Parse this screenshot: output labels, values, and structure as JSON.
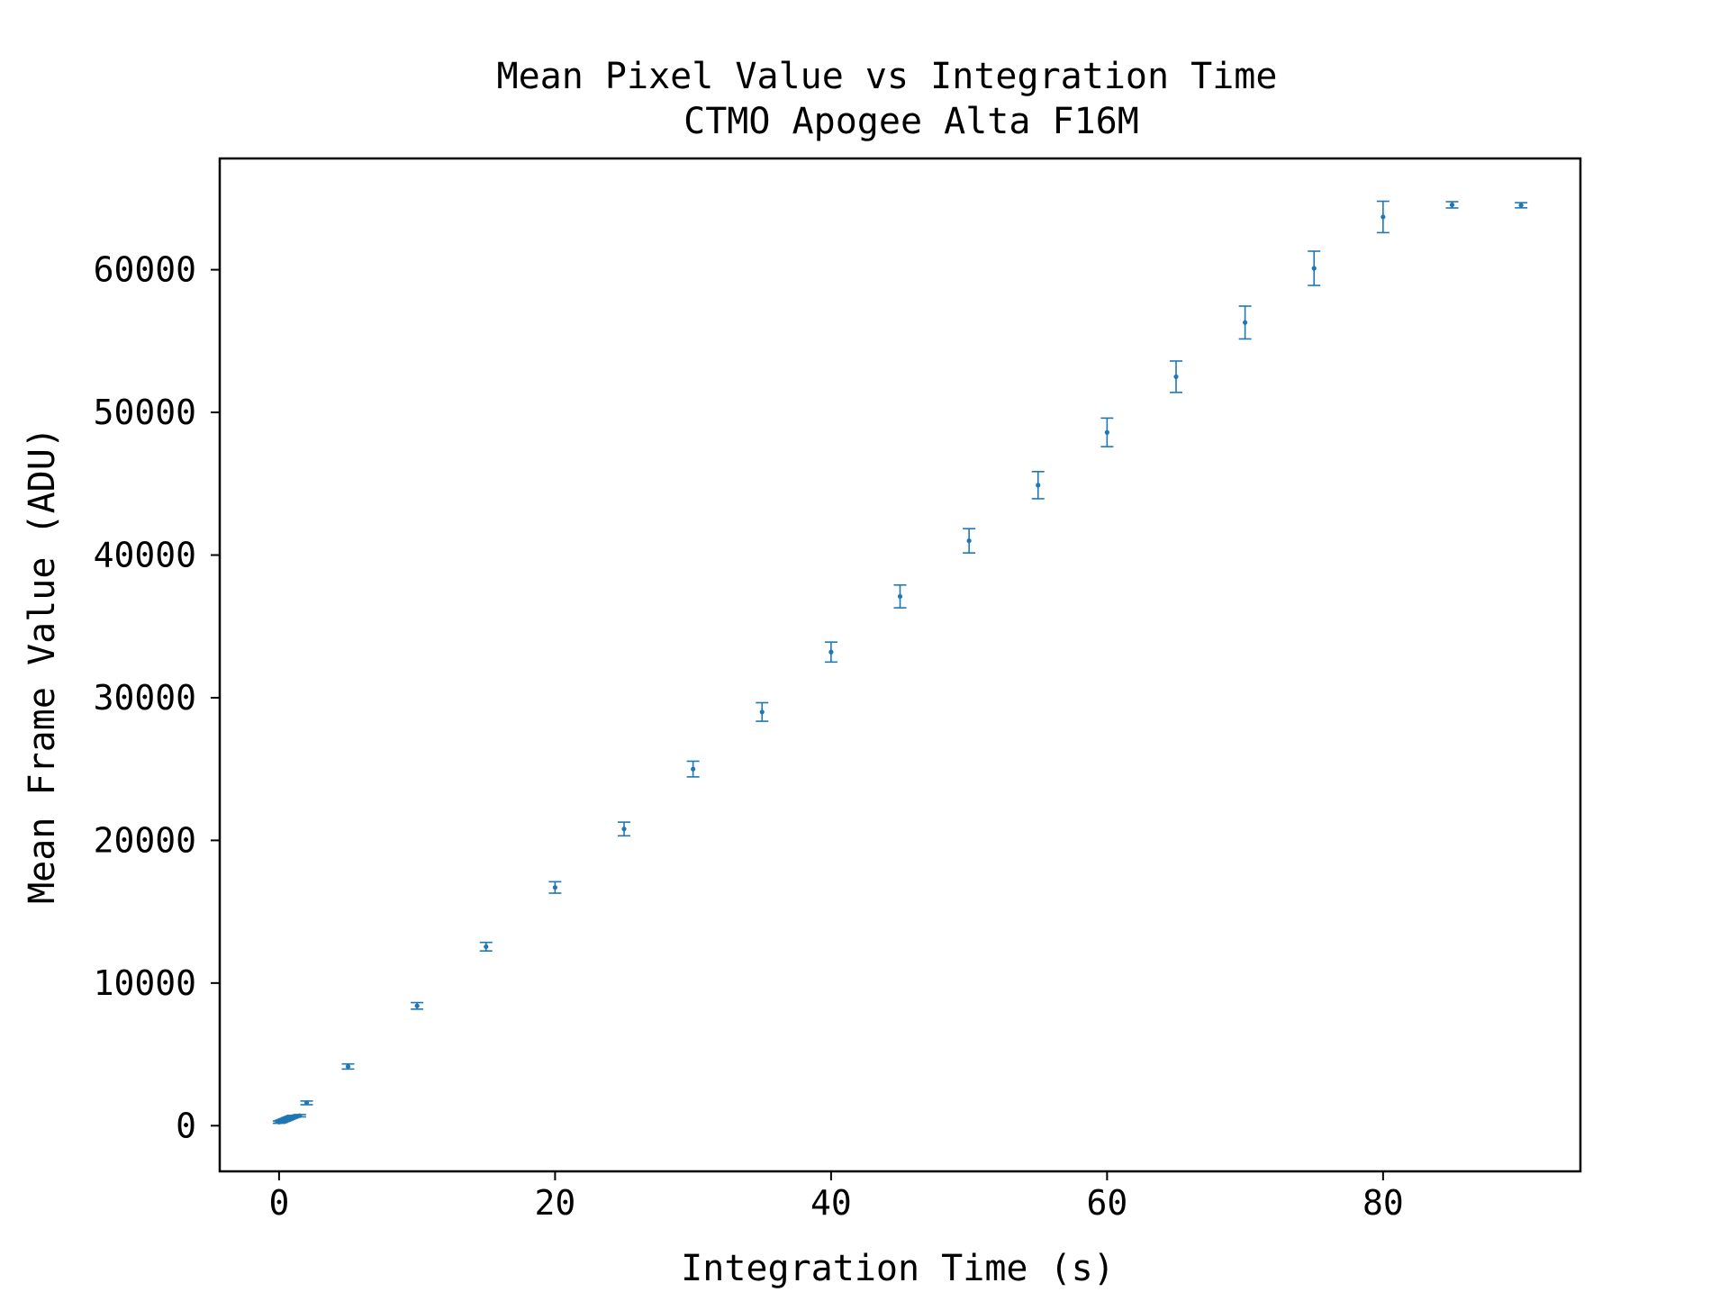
{
  "chart_data": {
    "type": "scatter",
    "title": "Mean Pixel Value vs Integration Time",
    "subtitle": "CTMO Apogee Alta F16M",
    "xlabel": "Integration Time (s)",
    "ylabel": "Mean Frame Value (ADU)",
    "xlim": [
      -4.3,
      94.3
    ],
    "ylim": [
      -3200,
      67800
    ],
    "x_ticks": [
      0,
      20,
      40,
      60,
      80
    ],
    "y_ticks": [
      0,
      10000,
      20000,
      30000,
      40000,
      50000,
      60000
    ],
    "x_tick_labels": [
      "0",
      "20",
      "40",
      "60",
      "80"
    ],
    "y_tick_labels": [
      "0",
      "10000",
      "20000",
      "30000",
      "40000",
      "50000",
      "60000"
    ],
    "grid": false,
    "legend": "none",
    "color": "#1f77b4",
    "series": [
      {
        "points": [
          {
            "x": 0.0,
            "y": 250,
            "err": 80
          },
          {
            "x": 0.1,
            "y": 280,
            "err": 80
          },
          {
            "x": 0.2,
            "y": 320,
            "err": 80
          },
          {
            "x": 0.3,
            "y": 360,
            "err": 80
          },
          {
            "x": 0.4,
            "y": 400,
            "err": 80
          },
          {
            "x": 0.5,
            "y": 440,
            "err": 80
          },
          {
            "x": 0.6,
            "y": 480,
            "err": 80
          },
          {
            "x": 0.7,
            "y": 520,
            "err": 80
          },
          {
            "x": 0.8,
            "y": 560,
            "err": 80
          },
          {
            "x": 0.9,
            "y": 600,
            "err": 80
          },
          {
            "x": 1.0,
            "y": 640,
            "err": 80
          },
          {
            "x": 1.5,
            "y": 700,
            "err": 80
          },
          {
            "x": 2,
            "y": 1600,
            "err": 130
          },
          {
            "x": 5,
            "y": 4150,
            "err": 180
          },
          {
            "x": 10,
            "y": 8400,
            "err": 230
          },
          {
            "x": 15,
            "y": 12550,
            "err": 300
          },
          {
            "x": 20,
            "y": 16700,
            "err": 400
          },
          {
            "x": 25,
            "y": 20800,
            "err": 480
          },
          {
            "x": 30,
            "y": 25000,
            "err": 550
          },
          {
            "x": 35,
            "y": 29000,
            "err": 650
          },
          {
            "x": 40,
            "y": 33200,
            "err": 700
          },
          {
            "x": 45,
            "y": 37100,
            "err": 800
          },
          {
            "x": 50,
            "y": 41000,
            "err": 850
          },
          {
            "x": 55,
            "y": 44900,
            "err": 950
          },
          {
            "x": 60,
            "y": 48600,
            "err": 1000
          },
          {
            "x": 65,
            "y": 52500,
            "err": 1100
          },
          {
            "x": 70,
            "y": 56300,
            "err": 1150
          },
          {
            "x": 75,
            "y": 60100,
            "err": 1200
          },
          {
            "x": 80,
            "y": 63700,
            "err": 1100
          },
          {
            "x": 85,
            "y": 64550,
            "err": 220
          },
          {
            "x": 90,
            "y": 64520,
            "err": 180
          }
        ]
      }
    ]
  }
}
